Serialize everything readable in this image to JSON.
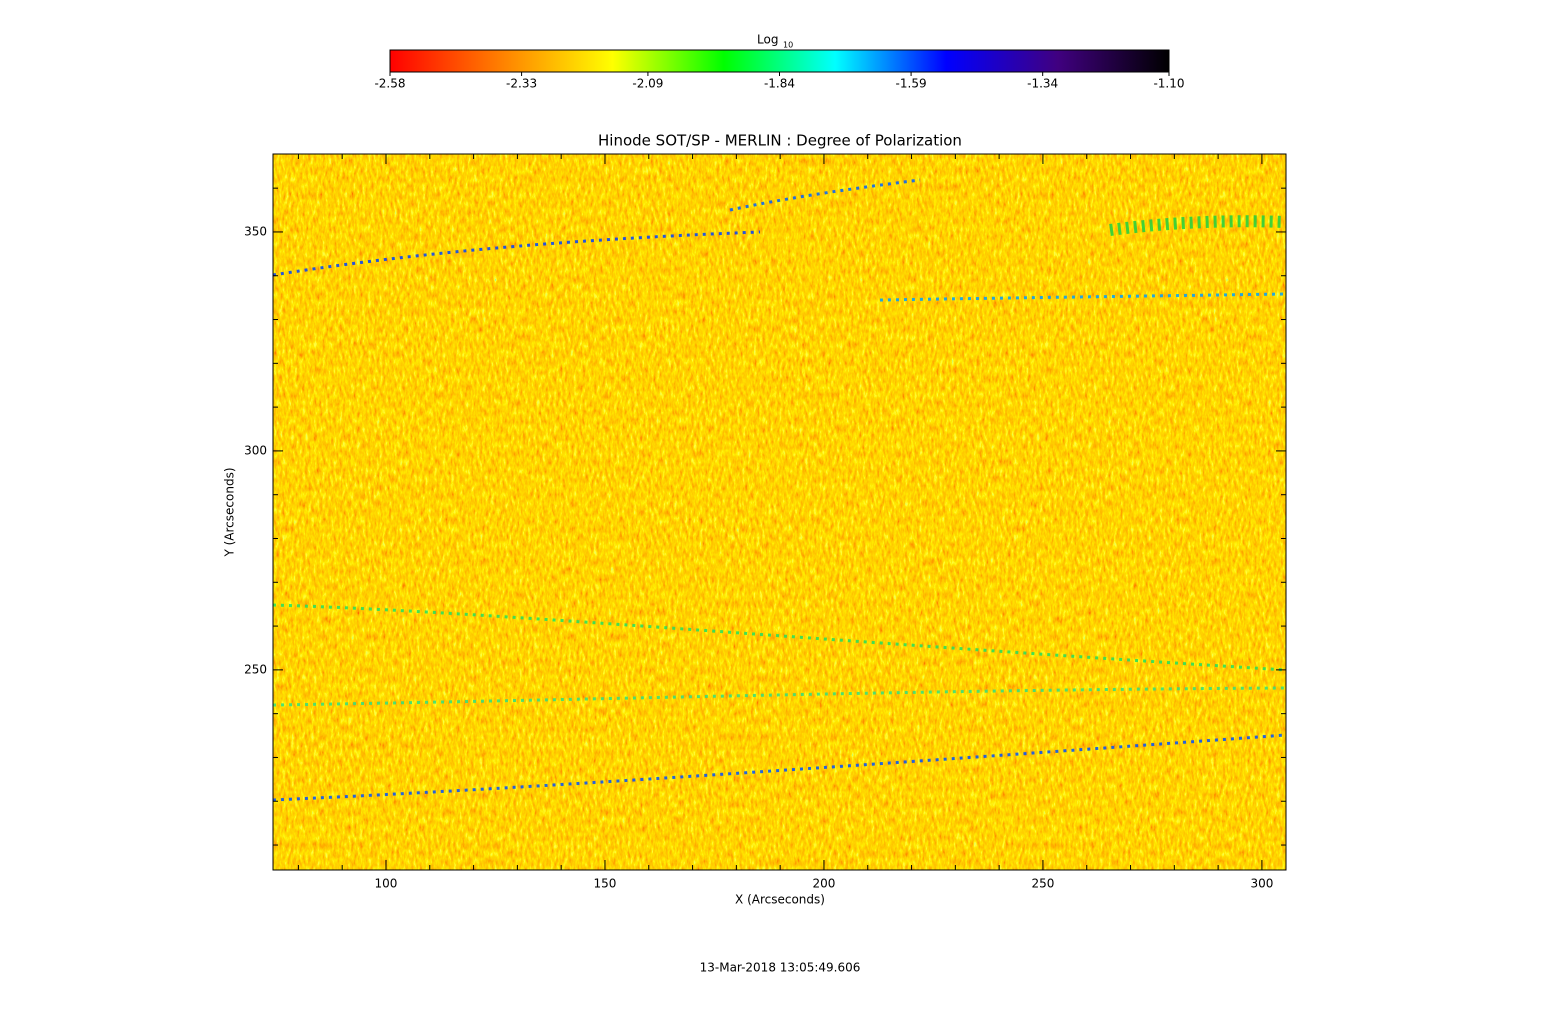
{
  "chart_data": {
    "type": "heatmap",
    "title": "Hinode SOT/SP - MERLIN : Degree of Polarization",
    "xlabel": "X (Arcseconds)",
    "ylabel": "Y (Arcseconds)",
    "xlim": [
      74.2,
      305.5
    ],
    "xticks": [
      100,
      150,
      200,
      250,
      300
    ],
    "xminorticks": [
      80,
      90,
      110,
      120,
      130,
      140,
      160,
      170,
      180,
      190,
      210,
      220,
      230,
      240,
      260,
      270,
      280,
      290
    ],
    "ylim": [
      204.3,
      367.8
    ],
    "yticks": [
      250,
      300,
      350
    ],
    "yminorticks": [
      210,
      220,
      230,
      240,
      260,
      270,
      280,
      290,
      310,
      320,
      330,
      340,
      360
    ],
    "colorbar": {
      "label": "Log",
      "label_subscript": "10",
      "lim": [
        -2.58,
        -1.1
      ],
      "ticks": [
        -2.58,
        -2.33,
        -2.09,
        -1.84,
        -1.59,
        -1.34,
        {
          "value": -1.1,
          "label": "-1.10"
        }
      ],
      "colormap": [
        "#ff0000",
        "#ff8000",
        "#ffff00",
        "#00ff00",
        "#00ffff",
        "#0000ff",
        "#400080",
        "#000000"
      ]
    },
    "timestamp": "13-Mar-2018 13:05:49.606"
  }
}
